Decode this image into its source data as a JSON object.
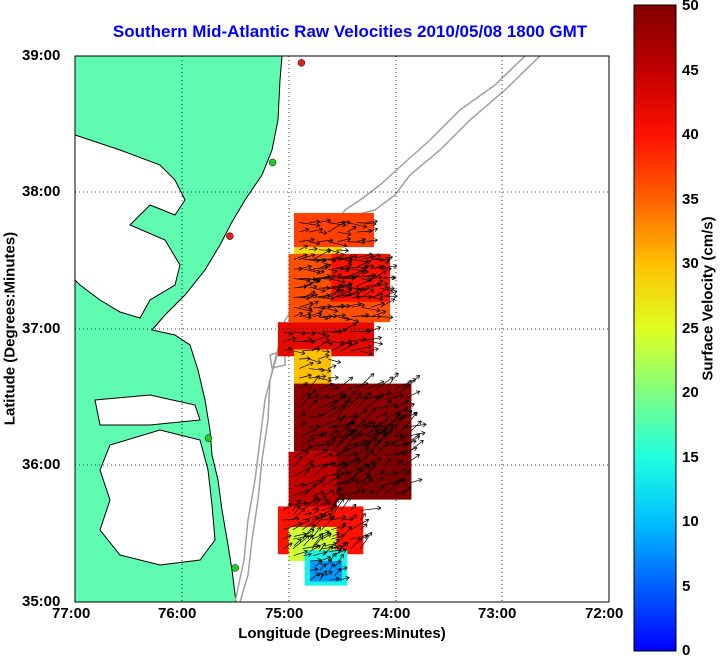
{
  "title": "Southern Mid-Atlantic Raw Velocities 2010/05/08 1800 GMT",
  "axes": {
    "xlabel": "Longitude (Degrees:Minutes)",
    "ylabel": "Latitude (Degrees:Minutes)",
    "xticks": [
      "77:00",
      "76:00",
      "75:00",
      "74:00",
      "73:00",
      "72:00"
    ],
    "yticks": [
      "39:00",
      "38:00",
      "37:00",
      "36:00",
      "35:00"
    ],
    "xlim": [
      -77,
      -72
    ],
    "ylim": [
      35,
      39
    ]
  },
  "colorbar": {
    "label": "Surface Velocity (cm/s)",
    "ticks": [
      "50",
      "45",
      "40",
      "35",
      "30",
      "25",
      "20",
      "15",
      "10",
      "5",
      "0"
    ],
    "range": [
      0,
      50
    ],
    "colormap": "jet"
  },
  "colors": {
    "title": "#0000ff",
    "land": "#5ffbb0",
    "coast": "#000000",
    "bathymetry": "#a0a0a0",
    "station_active": "#22cc22",
    "station_inactive": "#dd2222"
  },
  "stations": [
    {
      "lon": -74.88,
      "lat": 38.95,
      "status": "inactive"
    },
    {
      "lon": -75.15,
      "lat": 38.22,
      "status": "active"
    },
    {
      "lon": -75.55,
      "lat": 37.68,
      "status": "inactive"
    },
    {
      "lon": -75.75,
      "lat": 36.2,
      "status": "active"
    },
    {
      "lon": -75.5,
      "lat": 35.25,
      "status": "active"
    }
  ],
  "velocity_field": [
    {
      "lon_min": -74.95,
      "lon_max": -74.2,
      "lat_min": 37.6,
      "lat_max": 37.85,
      "speed": 37
    },
    {
      "lon_min": -74.95,
      "lon_max": -74.5,
      "lat_min": 37.05,
      "lat_max": 37.6,
      "speed": 28
    },
    {
      "lon_min": -75.0,
      "lon_max": -74.05,
      "lat_min": 37.05,
      "lat_max": 37.55,
      "speed": 36
    },
    {
      "lon_min": -74.6,
      "lon_max": -74.05,
      "lat_min": 37.2,
      "lat_max": 37.55,
      "speed": 40
    },
    {
      "lon_min": -75.1,
      "lon_max": -74.2,
      "lat_min": 36.8,
      "lat_max": 37.05,
      "speed": 42
    },
    {
      "lon_min": -74.95,
      "lon_max": -74.6,
      "lat_min": 36.6,
      "lat_max": 36.85,
      "speed": 30
    },
    {
      "lon_min": -74.95,
      "lon_max": -73.85,
      "lat_min": 36.1,
      "lat_max": 36.6,
      "speed": 49
    },
    {
      "lon_min": -74.6,
      "lon_max": -73.85,
      "lat_min": 35.75,
      "lat_max": 36.3,
      "speed": 50
    },
    {
      "lon_min": -75.0,
      "lon_max": -74.55,
      "lat_min": 35.6,
      "lat_max": 36.1,
      "speed": 45
    },
    {
      "lon_min": -75.1,
      "lon_max": -74.3,
      "lat_min": 35.35,
      "lat_max": 35.7,
      "speed": 40
    },
    {
      "lon_min": -75.0,
      "lon_max": -74.55,
      "lat_min": 35.3,
      "lat_max": 35.55,
      "speed": 24
    },
    {
      "lon_min": -74.85,
      "lon_max": -74.45,
      "lat_min": 35.12,
      "lat_max": 35.38,
      "speed": 14
    },
    {
      "lon_min": -74.8,
      "lon_max": -74.5,
      "lat_min": 35.15,
      "lat_max": 35.3,
      "speed": 8
    }
  ]
}
